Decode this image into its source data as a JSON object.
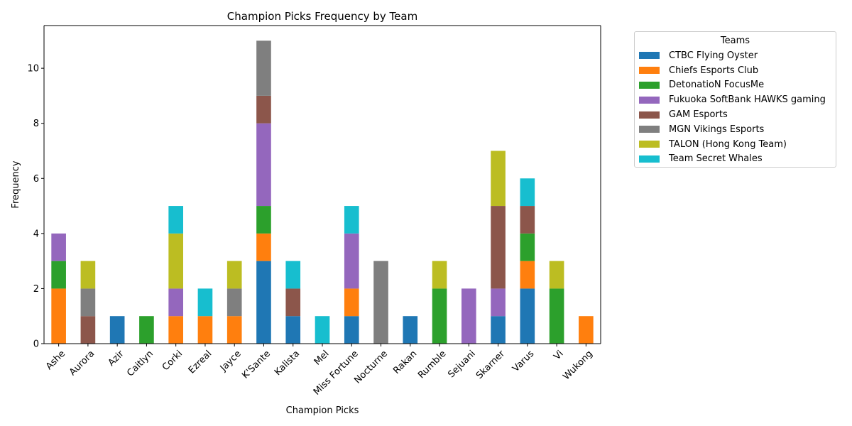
{
  "chart_data": {
    "type": "bar",
    "stacked": true,
    "title": "Champion Picks Frequency by Team",
    "xlabel": "Champion Picks",
    "ylabel": "Frequency",
    "ylim": [
      0,
      11.55
    ],
    "yticks": [
      0,
      2,
      4,
      6,
      8,
      10
    ],
    "grid": false,
    "legend_title": "Teams",
    "legend_position": "outside-top-right",
    "categories": [
      "Ashe",
      "Aurora",
      "Azir",
      "Caitlyn",
      "Corki",
      "Ezreal",
      "Jayce",
      "K'Sante",
      "Kalista",
      "Mel",
      "Miss Fortune",
      "Nocturne",
      "Rakan",
      "Rumble",
      "Sejuani",
      "Skarner",
      "Varus",
      "Vi",
      "Wukong"
    ],
    "series": [
      {
        "name": "CTBC Flying Oyster",
        "color": "#1f77b4",
        "values": [
          0,
          0,
          1,
          0,
          0,
          0,
          0,
          3,
          1,
          0,
          1,
          0,
          1,
          0,
          0,
          1,
          2,
          0,
          0
        ]
      },
      {
        "name": "Chiefs Esports Club",
        "color": "#ff7f0e",
        "values": [
          2,
          0,
          0,
          0,
          1,
          1,
          1,
          1,
          0,
          0,
          1,
          0,
          0,
          0,
          0,
          0,
          1,
          0,
          1
        ]
      },
      {
        "name": "DetonatioN FocusMe",
        "color": "#2ca02c",
        "values": [
          1,
          0,
          0,
          1,
          0,
          0,
          0,
          1,
          0,
          0,
          0,
          0,
          0,
          2,
          0,
          0,
          1,
          2,
          0
        ]
      },
      {
        "name": "Fukuoka SoftBank HAWKS gaming",
        "color": "#9467bd",
        "values": [
          1,
          0,
          0,
          0,
          1,
          0,
          0,
          3,
          0,
          0,
          2,
          0,
          0,
          0,
          2,
          1,
          0,
          0,
          0
        ]
      },
      {
        "name": "GAM Esports",
        "color": "#8c564b",
        "values": [
          0,
          1,
          0,
          0,
          0,
          0,
          0,
          1,
          1,
          0,
          0,
          0,
          0,
          0,
          0,
          3,
          1,
          0,
          0
        ]
      },
      {
        "name": "MGN Vikings Esports",
        "color": "#7f7f7f",
        "values": [
          0,
          1,
          0,
          0,
          0,
          0,
          1,
          2,
          0,
          0,
          0,
          3,
          0,
          0,
          0,
          0,
          0,
          0,
          0
        ]
      },
      {
        "name": "TALON (Hong Kong Team)",
        "color": "#bcbd22",
        "values": [
          0,
          1,
          0,
          0,
          2,
          0,
          1,
          0,
          0,
          0,
          0,
          0,
          0,
          1,
          0,
          2,
          0,
          1,
          0
        ]
      },
      {
        "name": "Team Secret Whales",
        "color": "#17becf",
        "values": [
          0,
          0,
          0,
          0,
          1,
          1,
          0,
          0,
          1,
          1,
          1,
          0,
          0,
          0,
          0,
          0,
          1,
          0,
          0
        ]
      }
    ]
  }
}
